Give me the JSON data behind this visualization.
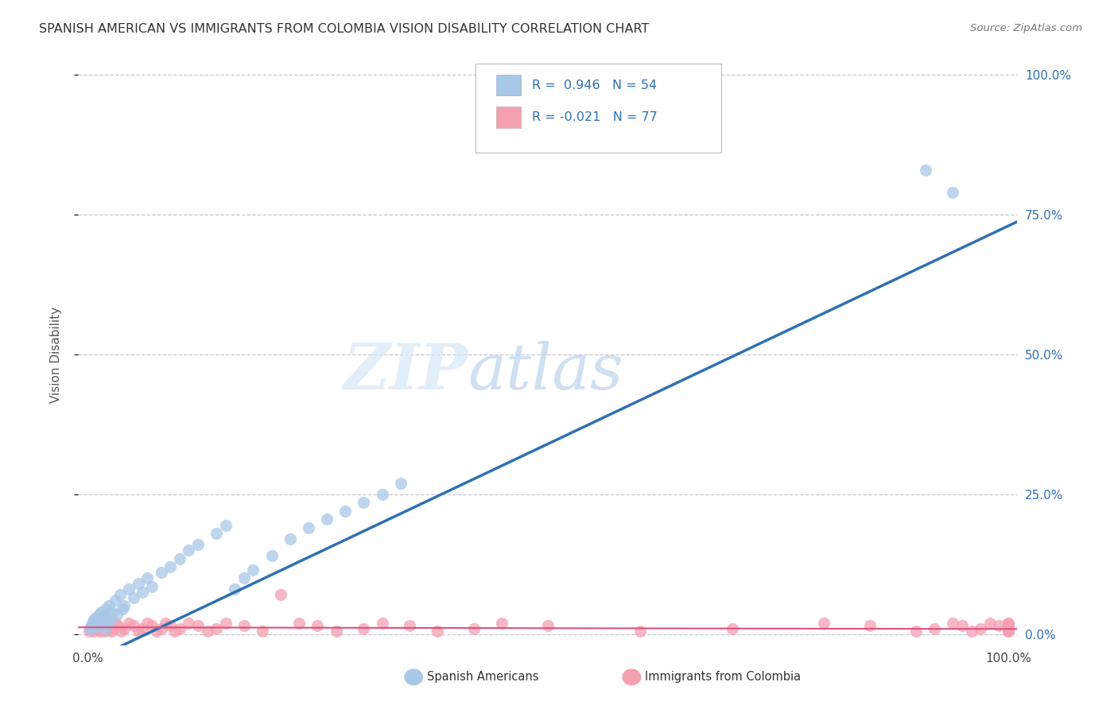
{
  "title": "SPANISH AMERICAN VS IMMIGRANTS FROM COLOMBIA VISION DISABILITY CORRELATION CHART",
  "source": "Source: ZipAtlas.com",
  "ylabel": "Vision Disability",
  "ytick_labels": [
    "0.0%",
    "25.0%",
    "50.0%",
    "75.0%",
    "100.0%"
  ],
  "ytick_values": [
    0,
    25,
    50,
    75,
    100
  ],
  "series1_label": "Spanish Americans",
  "series2_label": "Immigrants from Colombia",
  "R1": "0.946",
  "N1": "54",
  "R2": "-0.021",
  "N2": "77",
  "color_blue": "#a8c8e8",
  "color_pink": "#f4a0b0",
  "line_blue": "#3070b0",
  "line_pink": "#e05080",
  "background": "#ffffff",
  "grid_color": "#c8c8d0",
  "line_blue_slope": 0.78,
  "line_blue_intercept": -5.0,
  "line_pink_slope": -0.003,
  "line_pink_intercept": 1.2,
  "scatter_blue_x": [
    0.3,
    0.4,
    0.5,
    0.6,
    0.7,
    0.8,
    0.9,
    1.0,
    1.1,
    1.2,
    1.3,
    1.4,
    1.5,
    1.6,
    1.7,
    1.8,
    1.9,
    2.0,
    2.1,
    2.2,
    2.3,
    2.5,
    2.7,
    3.0,
    3.2,
    3.5,
    3.8,
    4.0,
    4.5,
    5.0,
    5.5,
    6.0,
    6.5,
    7.0,
    8.0,
    9.0,
    10.0,
    11.0,
    12.0,
    14.0,
    15.0,
    16.0,
    17.0,
    18.0,
    20.0,
    22.0,
    24.0,
    26.0,
    28.0,
    30.0,
    32.0,
    34.0,
    91.0,
    94.0
  ],
  "scatter_blue_y": [
    1.0,
    1.5,
    2.0,
    1.8,
    2.5,
    1.2,
    3.0,
    2.0,
    1.5,
    2.8,
    3.5,
    2.2,
    4.0,
    1.8,
    2.5,
    3.2,
    1.0,
    4.5,
    2.0,
    3.0,
    5.0,
    2.5,
    4.0,
    6.0,
    3.5,
    7.0,
    4.5,
    5.0,
    8.0,
    6.5,
    9.0,
    7.5,
    10.0,
    8.5,
    11.0,
    12.0,
    13.5,
    15.0,
    16.0,
    18.0,
    19.5,
    8.0,
    10.0,
    11.5,
    14.0,
    17.0,
    19.0,
    20.5,
    22.0,
    23.5,
    25.0,
    27.0,
    83.0,
    79.0
  ],
  "scatter_pink_x": [
    0.2,
    0.3,
    0.4,
    0.5,
    0.6,
    0.7,
    0.8,
    0.9,
    1.0,
    1.1,
    1.2,
    1.3,
    1.4,
    1.5,
    1.6,
    1.7,
    1.8,
    1.9,
    2.0,
    2.2,
    2.4,
    2.6,
    2.8,
    3.0,
    3.3,
    3.6,
    4.0,
    4.5,
    5.0,
    5.5,
    6.0,
    6.5,
    7.0,
    7.5,
    8.0,
    8.5,
    9.0,
    9.5,
    10.0,
    11.0,
    12.0,
    13.0,
    14.0,
    15.0,
    17.0,
    19.0,
    21.0,
    23.0,
    25.0,
    27.0,
    30.0,
    32.0,
    35.0,
    38.0,
    42.0,
    45.0,
    50.0,
    60.0,
    70.0,
    80.0,
    85.0,
    90.0,
    92.0,
    94.0,
    95.0,
    96.0,
    97.0,
    98.0,
    99.0,
    100.0,
    100.0,
    100.0,
    100.0,
    100.0,
    100.0,
    100.0,
    100.0
  ],
  "scatter_pink_y": [
    0.5,
    1.0,
    0.8,
    1.5,
    1.2,
    0.5,
    1.0,
    1.8,
    1.5,
    0.8,
    2.2,
    1.0,
    0.5,
    1.5,
    2.0,
    3.0,
    1.0,
    0.5,
    1.5,
    2.0,
    1.5,
    0.5,
    1.0,
    2.0,
    1.5,
    0.5,
    1.0,
    2.0,
    1.5,
    0.5,
    1.0,
    2.0,
    1.5,
    0.5,
    1.0,
    2.0,
    1.5,
    0.5,
    1.0,
    2.0,
    1.5,
    0.5,
    1.0,
    2.0,
    1.5,
    0.5,
    7.0,
    2.0,
    1.5,
    0.5,
    1.0,
    2.0,
    1.5,
    0.5,
    1.0,
    2.0,
    1.5,
    0.5,
    1.0,
    2.0,
    1.5,
    0.5,
    1.0,
    2.0,
    1.5,
    0.5,
    1.0,
    2.0,
    1.5,
    0.5,
    1.0,
    2.0,
    1.5,
    0.5,
    1.0,
    2.0,
    1.5
  ]
}
